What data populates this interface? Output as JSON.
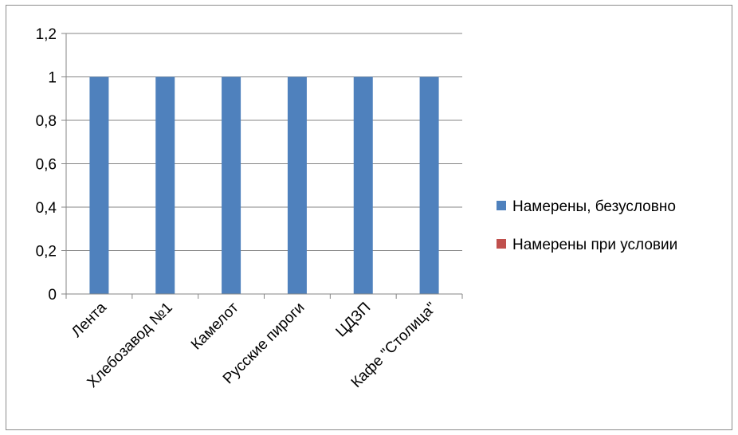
{
  "chart_data": {
    "type": "bar",
    "categories": [
      "Лента",
      "Хлебозавод №1",
      "Камелот",
      "Русские пироги",
      "ЦДЗП",
      "Кафе \"Столица\""
    ],
    "series": [
      {
        "name": "Намерены, безусловно",
        "color": "#4f81bd",
        "values": [
          1,
          1,
          1,
          1,
          1,
          1
        ]
      },
      {
        "name": "Намерены при условии",
        "color": "#c0504d",
        "values": [
          0,
          0,
          0,
          0,
          0,
          0
        ]
      }
    ],
    "ylim": [
      0,
      1.2
    ],
    "yticks": [
      "0",
      "0,2",
      "0,4",
      "0,6",
      "0,8",
      "1",
      "1,2"
    ],
    "grid": true,
    "legend_position": "right"
  }
}
